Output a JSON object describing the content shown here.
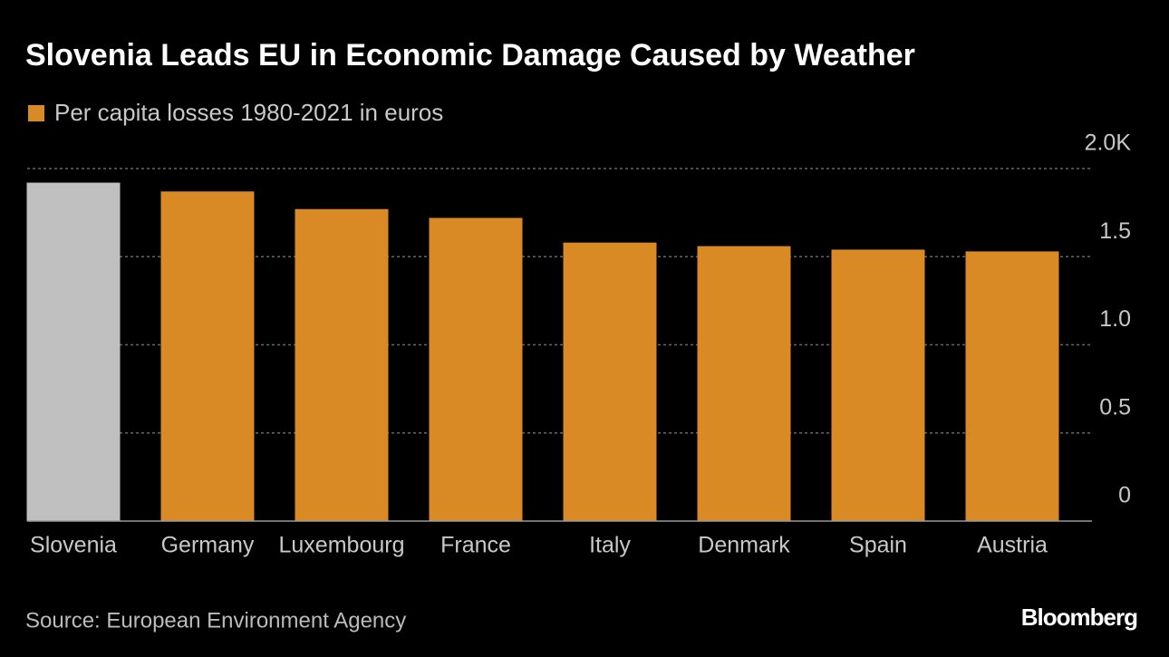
{
  "chart_data": {
    "type": "bar",
    "title": "Slovenia Leads EU in Economic Damage Caused by Weather",
    "categories": [
      "Slovenia",
      "Germany",
      "Luxembourg",
      "France",
      "Italy",
      "Denmark",
      "Spain",
      "Austria"
    ],
    "series": [
      {
        "name": "Per capita losses 1980-2021 in euros",
        "color": "#d98a24",
        "colors": [
          "#c0c0c0",
          "#d98a24",
          "#d98a24",
          "#d98a24",
          "#d98a24",
          "#d98a24",
          "#d98a24",
          "#d98a24"
        ],
        "values": [
          1.92,
          1.87,
          1.77,
          1.72,
          1.58,
          1.56,
          1.54,
          1.53
        ]
      }
    ],
    "ylim": [
      0,
      2
    ],
    "yticks": [
      0,
      0.5,
      {
        "value": 1,
        "label": "1.0"
      },
      1.5,
      {
        "value": 2,
        "label": "2.0K"
      }
    ],
    "grid": true,
    "source": "Source: European Environment Agency",
    "brand": "Bloomberg"
  }
}
